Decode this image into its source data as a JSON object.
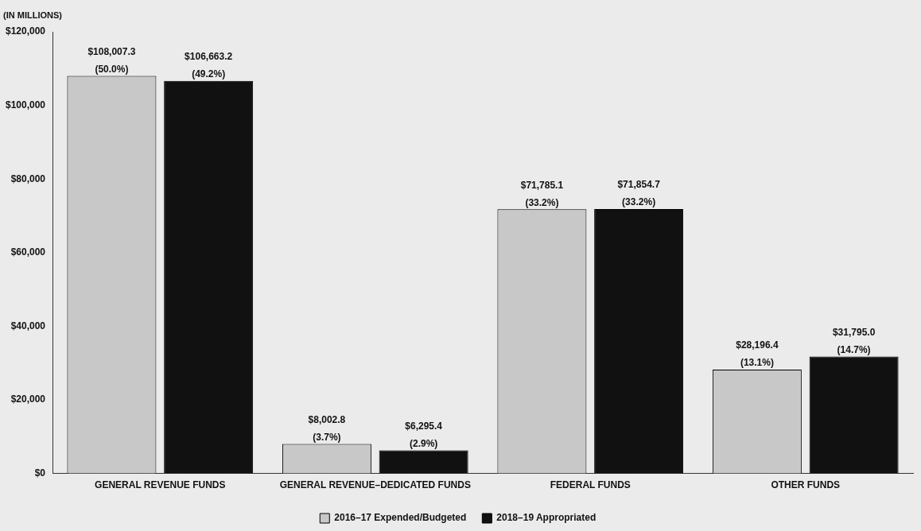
{
  "chart_data": {
    "type": "bar",
    "ylabel": "(IN MILLIONS)",
    "categories": [
      "GENERAL REVENUE FUNDS",
      "GENERAL REVENUE–DEDICATED FUNDS",
      "FEDERAL FUNDS",
      "OTHER FUNDS"
    ],
    "series": [
      {
        "name": "2016–17 Expended/Budgeted",
        "color": "#c8c8c8",
        "values": [
          108007.3,
          8002.8,
          71785.1,
          28196.4
        ],
        "value_labels": [
          "$108,007.3\n(50.0%)",
          "$8,002.8\n(3.7%)",
          "$71,785.1\n(33.2%)",
          "$28,196.4\n(13.1%)"
        ]
      },
      {
        "name": "2018–19 Appropriated",
        "color": "#111111",
        "values": [
          106663.2,
          6295.4,
          71854.7,
          31795.0
        ],
        "value_labels": [
          "$106,663.2\n(49.2%)",
          "$6,295.4\n(2.9%)",
          "$71,854.7\n(33.2%)",
          "$31,795.0\n(14.7%)"
        ]
      }
    ],
    "ylim": [
      0,
      120000
    ],
    "yticks": [
      {
        "value": 0,
        "label": "$0"
      },
      {
        "value": 20000,
        "label": "$20,000"
      },
      {
        "value": 40000,
        "label": "$40,000"
      },
      {
        "value": 60000,
        "label": "$60,000"
      },
      {
        "value": 80000,
        "label": "$80,000"
      },
      {
        "value": 100000,
        "label": "$100,000"
      },
      {
        "value": 120000,
        "label": "$120,000"
      }
    ],
    "grid": false,
    "legend": "bottom"
  }
}
